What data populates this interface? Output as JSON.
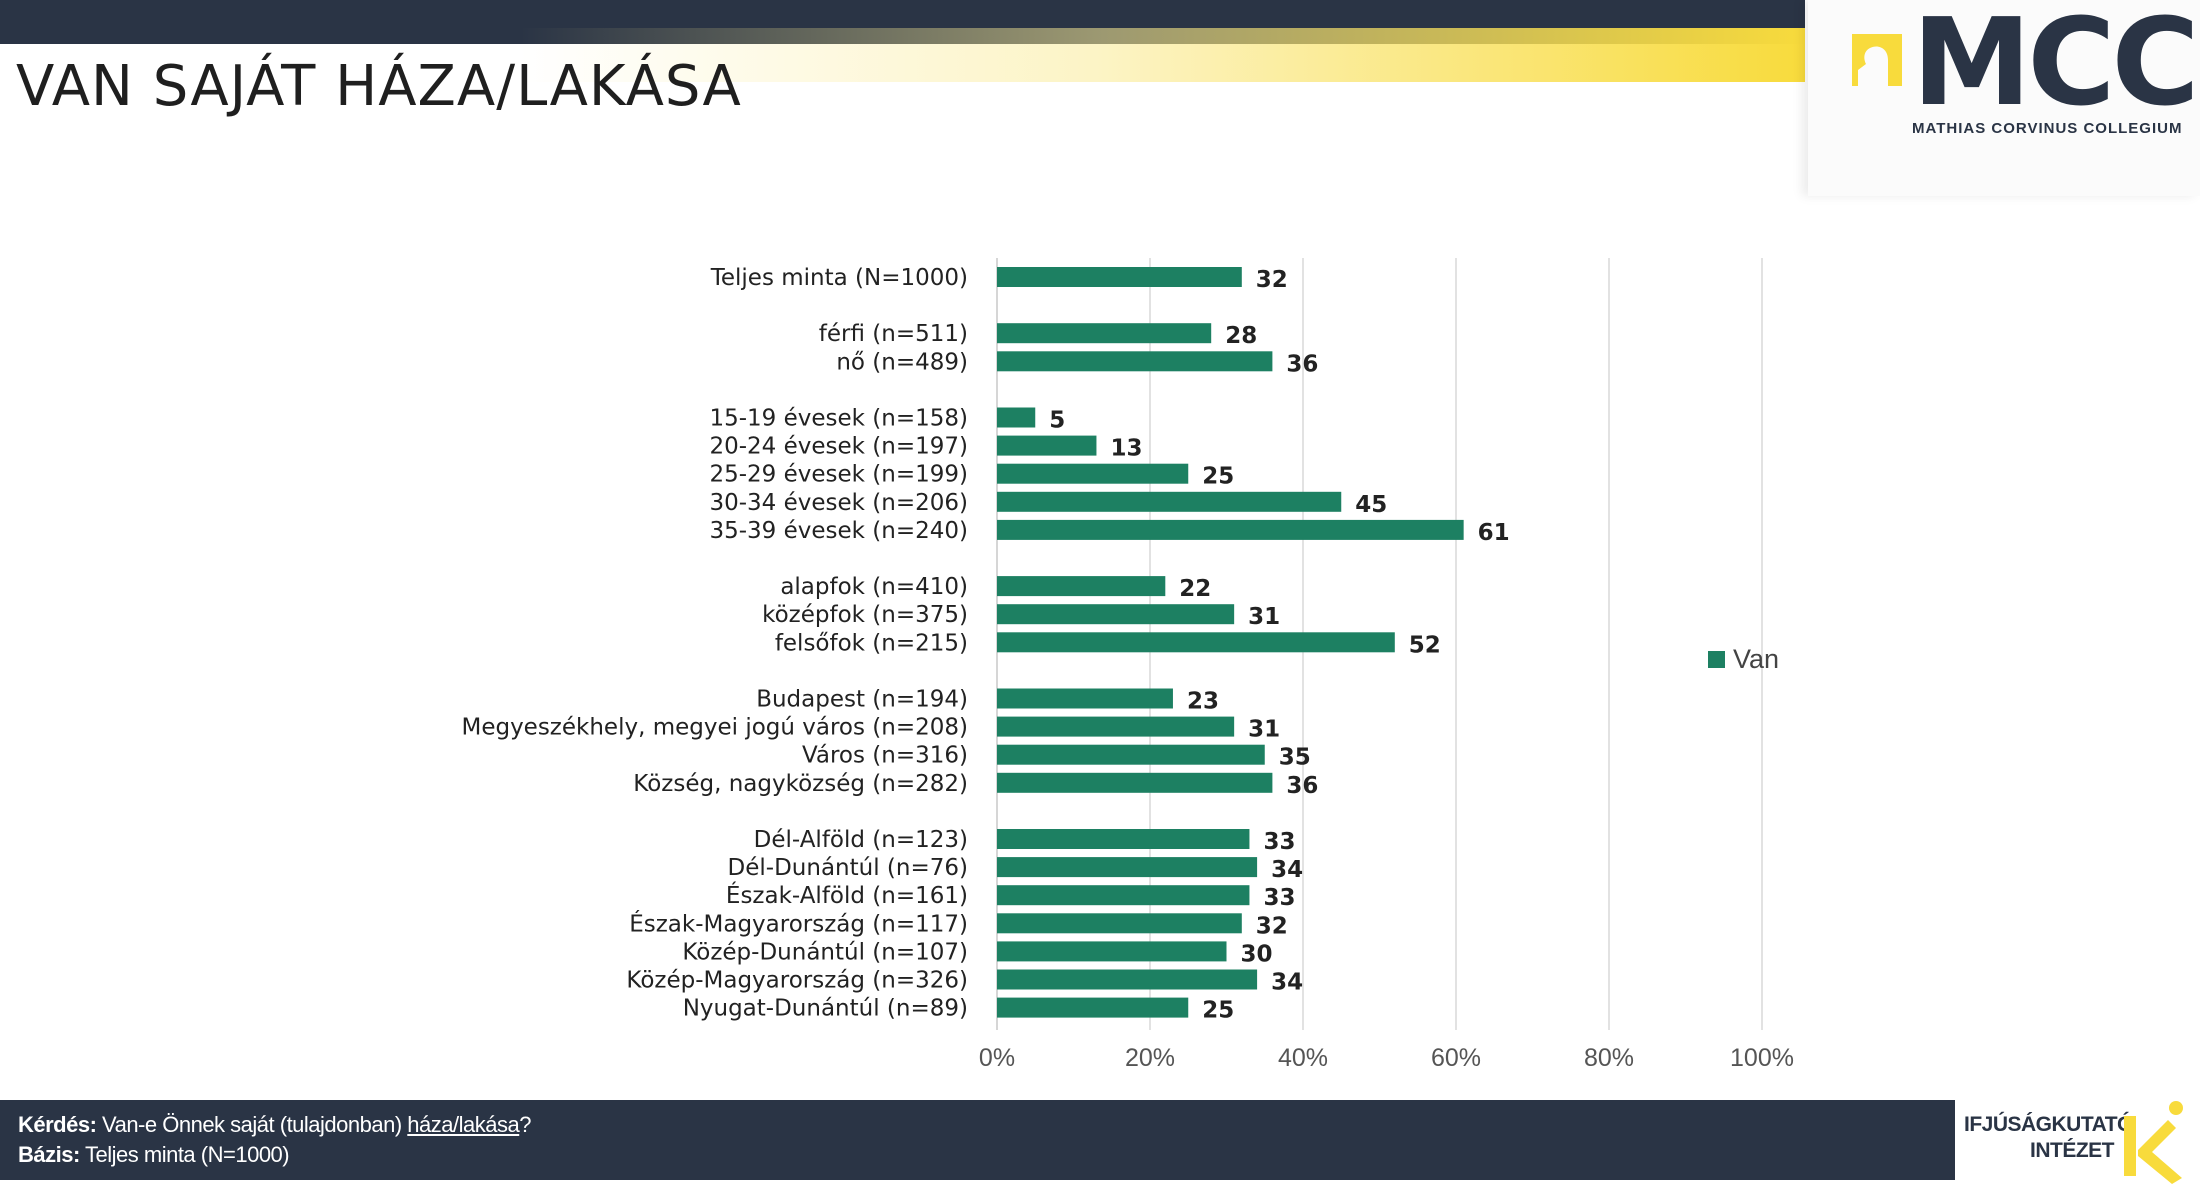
{
  "header": {
    "title": "VAN SAJÁT HÁZA/LAKÁSA"
  },
  "logo": {
    "name": "MCC",
    "subtitle": "MATHIAS CORVINUS COLLEGIUM",
    "icon": "mcc-head-icon"
  },
  "colors": {
    "dark_navy": "#2a3445",
    "gold": "#f8db3c",
    "bar_green": "#1d8062"
  },
  "chart_data": {
    "type": "bar",
    "orientation": "horizontal",
    "categories": [
      "Teljes minta (N=1000)",
      "férfi (n=511)",
      "nő (n=489)",
      "15-19 évesek (n=158)",
      "20-24 évesek (n=197)",
      "25-29 évesek (n=199)",
      "30-34 évesek (n=206)",
      "35-39 évesek (n=240)",
      "alapfok (n=410)",
      "középfok (n=375)",
      "felsőfok (n=215)",
      "Budapest (n=194)",
      "Megyeszékhely, megyei jogú város (n=208)",
      "Város (n=316)",
      "Község, nagyközség (n=282)",
      "Dél-Alföld (n=123)",
      "Dél-Dunántúl (n=76)",
      "Észak-Alföld (n=161)",
      "Észak-Magyarország (n=117)",
      "Közép-Dunántúl (n=107)",
      "Közép-Magyarország (n=326)",
      "Nyugat-Dunántúl (n=89)"
    ],
    "groups": [
      [
        0
      ],
      [
        1,
        2
      ],
      [
        3,
        4,
        5,
        6,
        7
      ],
      [
        8,
        9,
        10
      ],
      [
        11,
        12,
        13,
        14
      ],
      [
        15,
        16,
        17,
        18,
        19,
        20,
        21
      ]
    ],
    "series": [
      {
        "name": "Van",
        "color": "#1d8062",
        "values": [
          32,
          28,
          36,
          5,
          13,
          25,
          45,
          61,
          22,
          31,
          52,
          23,
          31,
          35,
          36,
          33,
          34,
          33,
          32,
          30,
          34,
          25
        ],
        "labels": [
          "32",
          "28",
          "36",
          "5",
          "13",
          "25",
          "45",
          "61",
          "22",
          "31",
          "52",
          "23",
          "31",
          "35",
          "36",
          "33",
          "34",
          "33",
          "32",
          "30",
          "34",
          "25"
        ]
      }
    ],
    "xlim": [
      0,
      100
    ],
    "xticks": [
      "0%",
      "20%",
      "40%",
      "60%",
      "80%",
      "100%"
    ],
    "grid": true,
    "legend_position": "right"
  },
  "footer": {
    "question_label": "Kérdés:",
    "question_text_before": "Van-e Önnek saját (tulajdonban)",
    "question_underlined": "háza/lakása",
    "question_end": "?",
    "base_label": "Bázis:",
    "base_text": "Teljes minta (N=1000)"
  },
  "institute_logo": {
    "line1": "IFJÚSÁGKUTATÓ",
    "line2": "INTÉZET",
    "icon": "ik-logo-icon"
  }
}
